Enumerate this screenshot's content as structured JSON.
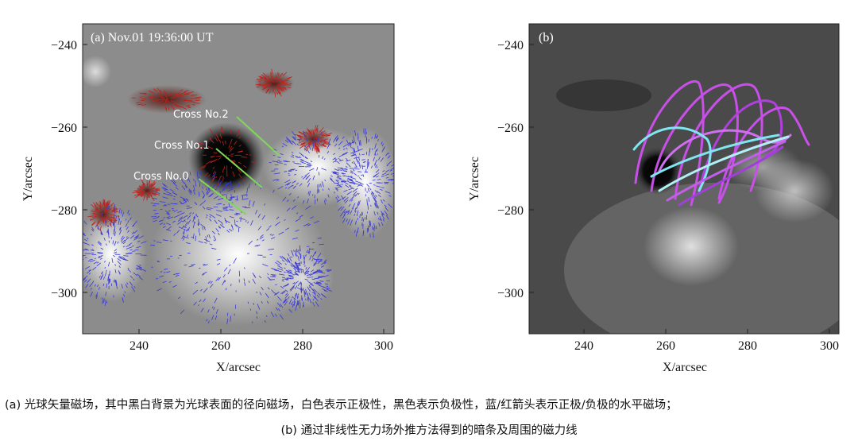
{
  "panel_a": {
    "label": "(a) Nov.01 19:36:00 UT",
    "x_ticks": [
      "240",
      "260",
      "280",
      "300"
    ],
    "y_ticks": [
      "−240",
      "−260",
      "−280",
      "−300"
    ],
    "x_axis_label": "X/arcsec",
    "y_axis_label": "Y/arcsec",
    "crosses": [
      "Cross No.2",
      "Cross No.1",
      "Cross No.0"
    ]
  },
  "panel_b": {
    "label": "(b)",
    "x_ticks": [
      "240",
      "260",
      "280",
      "300"
    ],
    "y_ticks": [
      "−240",
      "−260",
      "−280",
      "−300"
    ],
    "x_axis_label": "X/arcsec",
    "y_axis_label": "Y/arcsec"
  },
  "captions": {
    "a": "(a) 光球矢量磁场，其中黑白背景为光球表面的径向磁场，白色表示正极性，黑色表示负极性，蓝/红箭头表示正极/负极的水平磁场；",
    "b": "(b) 通过非线性无力场外推方法得到的暗条及周围的磁力线"
  },
  "colors": {
    "positive_arrows": "#3a3ad6",
    "negative_arrows": "#c0201a",
    "cross_lines": "#7ed957",
    "field_lines_pink": "#c850e8",
    "field_lines_cyan": "#7fe6f0"
  }
}
